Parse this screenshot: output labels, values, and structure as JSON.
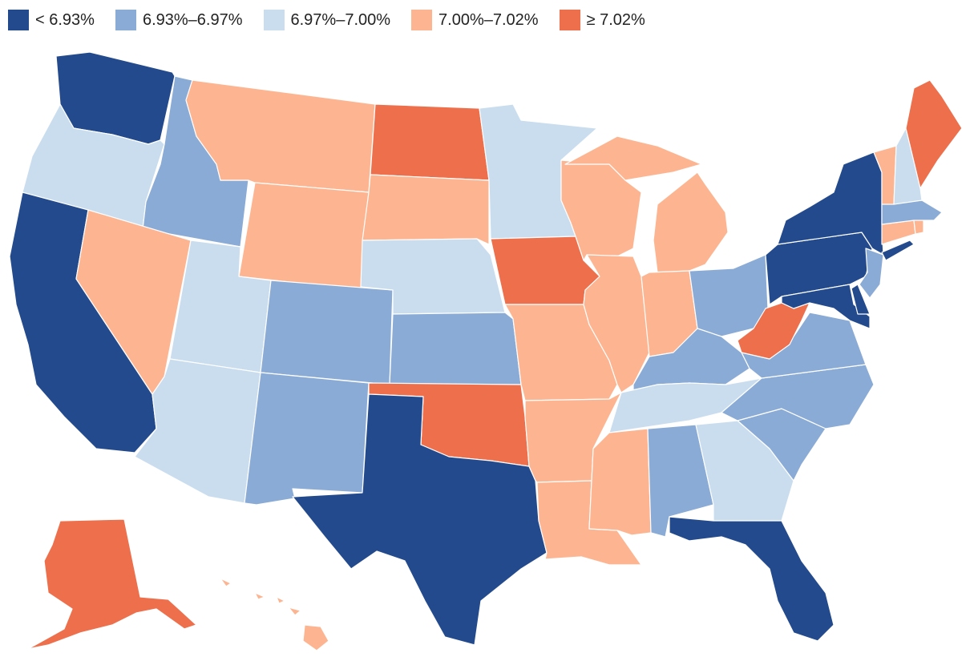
{
  "legend": {
    "bins": [
      {
        "label": "< 6.93%",
        "color": "#234a8c"
      },
      {
        "label": "6.93%–6.97%",
        "color": "#8aabd5"
      },
      {
        "label": "6.97%–7.00%",
        "color": "#c9ddef"
      },
      {
        "label": "7.00%–7.02%",
        "color": "#fdb591"
      },
      {
        "label": "≥ 7.02%",
        "color": "#ed6f4b"
      }
    ]
  },
  "states": [
    {
      "abbr": "WA",
      "bin": 0
    },
    {
      "abbr": "OR",
      "bin": 2
    },
    {
      "abbr": "CA",
      "bin": 0
    },
    {
      "abbr": "ID",
      "bin": 1
    },
    {
      "abbr": "NV",
      "bin": 3
    },
    {
      "abbr": "MT",
      "bin": 3
    },
    {
      "abbr": "WY",
      "bin": 3
    },
    {
      "abbr": "UT",
      "bin": 2
    },
    {
      "abbr": "AZ",
      "bin": 2
    },
    {
      "abbr": "CO",
      "bin": 1
    },
    {
      "abbr": "NM",
      "bin": 1
    },
    {
      "abbr": "ND",
      "bin": 4
    },
    {
      "abbr": "SD",
      "bin": 3
    },
    {
      "abbr": "NE",
      "bin": 2
    },
    {
      "abbr": "KS",
      "bin": 1
    },
    {
      "abbr": "OK",
      "bin": 4
    },
    {
      "abbr": "TX",
      "bin": 0
    },
    {
      "abbr": "MN",
      "bin": 2
    },
    {
      "abbr": "IA",
      "bin": 4
    },
    {
      "abbr": "MO",
      "bin": 3
    },
    {
      "abbr": "AR",
      "bin": 3
    },
    {
      "abbr": "LA",
      "bin": 3
    },
    {
      "abbr": "WI",
      "bin": 3
    },
    {
      "abbr": "IL",
      "bin": 3
    },
    {
      "abbr": "MI",
      "bin": 3
    },
    {
      "abbr": "IN",
      "bin": 3
    },
    {
      "abbr": "OH",
      "bin": 1
    },
    {
      "abbr": "KY",
      "bin": 1
    },
    {
      "abbr": "TN",
      "bin": 2
    },
    {
      "abbr": "MS",
      "bin": 3
    },
    {
      "abbr": "AL",
      "bin": 1
    },
    {
      "abbr": "GA",
      "bin": 2
    },
    {
      "abbr": "FL",
      "bin": 0
    },
    {
      "abbr": "SC",
      "bin": 1
    },
    {
      "abbr": "NC",
      "bin": 1
    },
    {
      "abbr": "VA",
      "bin": 1
    },
    {
      "abbr": "WV",
      "bin": 4
    },
    {
      "abbr": "MD",
      "bin": 0
    },
    {
      "abbr": "DE",
      "bin": 0
    },
    {
      "abbr": "PA",
      "bin": 0
    },
    {
      "abbr": "NJ",
      "bin": 1
    },
    {
      "abbr": "NY",
      "bin": 0
    },
    {
      "abbr": "CT",
      "bin": 3
    },
    {
      "abbr": "RI",
      "bin": 3
    },
    {
      "abbr": "MA",
      "bin": 1
    },
    {
      "abbr": "VT",
      "bin": 3
    },
    {
      "abbr": "NH",
      "bin": 2
    },
    {
      "abbr": "ME",
      "bin": 4
    },
    {
      "abbr": "AK",
      "bin": 4
    },
    {
      "abbr": "HI",
      "bin": 3
    }
  ]
}
